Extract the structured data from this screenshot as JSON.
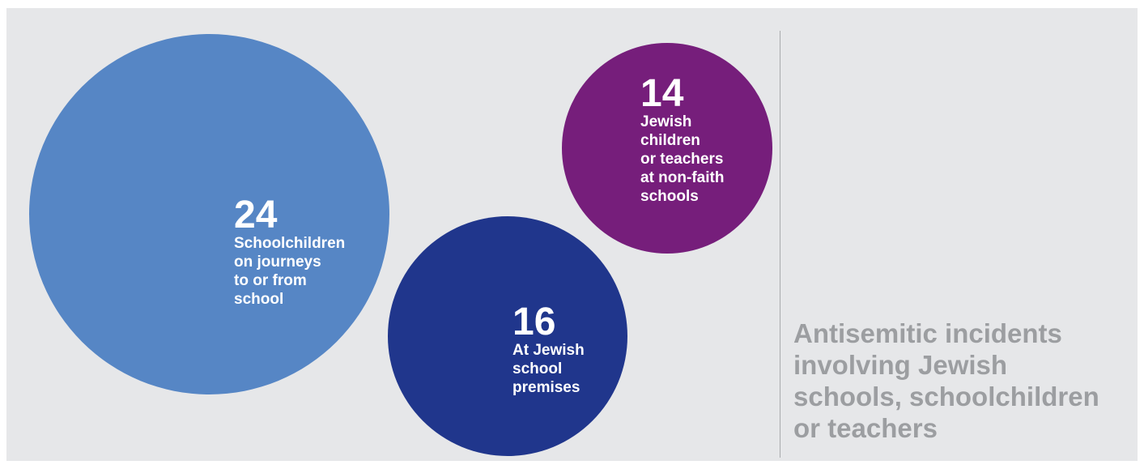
{
  "chart_data": {
    "type": "bubble",
    "title": "Antisemitic incidents\ninvolving Jewish\nschools, schoolchildren\nor teachers",
    "series": [
      {
        "value": 24,
        "label": "Schoolchildren\non journeys\nto or from\nschool",
        "color": "#5686c5"
      },
      {
        "value": 16,
        "label": "At Jewish\nschool\npremises",
        "color": "#20368c"
      },
      {
        "value": 14,
        "label": "Jewish\nchildren\nor teachers\nat non-faith\nschools",
        "color": "#761e7b"
      }
    ]
  }
}
